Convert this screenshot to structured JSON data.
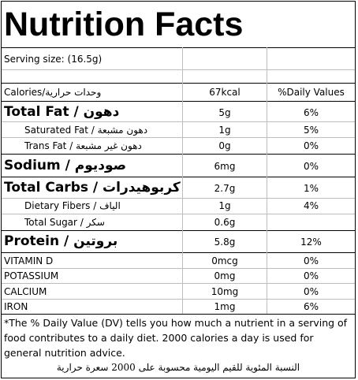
{
  "title": "Nutrition Facts",
  "serving": "Serving size:  (16.5g)",
  "header": {
    "calories_label": "Calories/وحدات حرارية",
    "calories_value": "67kcal",
    "dv_header": "%Daily Values"
  },
  "rows": [
    {
      "label": "Total Fat / دهون",
      "value": "5g",
      "dv": "6%"
    },
    {
      "label": "Saturated Fat / دهون مشبعة",
      "value": "1g",
      "dv": "5%"
    },
    {
      "label": "Trans Fat / دهون غير مشبعة",
      "value": "0g",
      "dv": "0%"
    },
    {
      "label": "Sodium / صوديوم",
      "value": "6mg",
      "dv": "0%"
    },
    {
      "label": "Total Carbs / كربوهيدرات",
      "value": "2.7g",
      "dv": "1%"
    },
    {
      "label": "Dietary Fibers / الياف",
      "value": "1g",
      "dv": "4%"
    },
    {
      "label": "Total Sugar / سكر",
      "value": "0.6g",
      "dv": ""
    },
    {
      "label": "Protein / بروتين",
      "value": "5.8g",
      "dv": "12%"
    },
    {
      "label": "VITAMIN D",
      "value": "0mcg",
      "dv": "0%"
    },
    {
      "label": "POTASSIUM",
      "value": "0mg",
      "dv": "0%"
    },
    {
      "label": "CALCIUM",
      "value": "10mg",
      "dv": "0%"
    },
    {
      "label": "IRON",
      "value": "1mg",
      "dv": "6%"
    }
  ],
  "footnote": "*The % Daily Value (DV) tells you how much a nutrient in a serving of food contributes to a daily diet. 2000 calories a day is used for general nutrition advice.",
  "footnote_ar": "النسبة المئوية للقيم اليومية محسوبة على 2000 سعرة حرارية"
}
